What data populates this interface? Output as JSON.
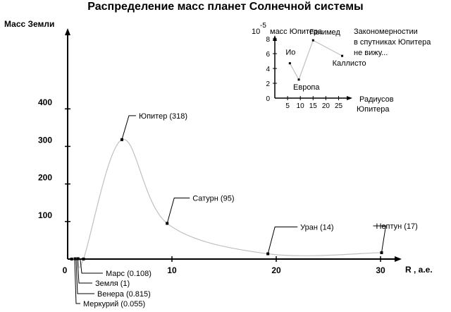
{
  "chart_data": [
    {
      "type": "line",
      "title": "Распределение масс планет Солнечной системы",
      "ylabel": "Масс Земли",
      "xlabel": "R , а.е.",
      "x_ticks": [
        "0",
        "10",
        "20",
        "30"
      ],
      "y_ticks": [
        "100",
        "200",
        "300",
        "400"
      ],
      "xlim": [
        0,
        35
      ],
      "ylim": [
        0,
        620
      ],
      "grid": false,
      "series": [
        {
          "x": [
            0.39,
            0.72,
            1.0,
            1.52,
            5.2,
            9.54,
            19.2,
            30.1
          ],
          "y": [
            0.055,
            0.815,
            1,
            0.108,
            318,
            95,
            14,
            17
          ]
        }
      ],
      "annotations": [
        {
          "label": "Меркурий (0.055)",
          "x": 0.39,
          "y": 0.055
        },
        {
          "label": "Венера (0.815)",
          "x": 0.72,
          "y": 0.815
        },
        {
          "label": "Земля (1)",
          "x": 1.0,
          "y": 1
        },
        {
          "label": "Марс (0.108)",
          "x": 1.52,
          "y": 0.108
        },
        {
          "label": "Юпитер (318)",
          "x": 5.2,
          "y": 318
        },
        {
          "label": "Сатурн (95)",
          "x": 9.54,
          "y": 95
        },
        {
          "label": "Уран (14)",
          "x": 19.2,
          "y": 14
        },
        {
          "label": "Нептун (17)",
          "x": 30.1,
          "y": 17
        }
      ]
    },
    {
      "type": "line",
      "ylabel_prefix": "10",
      "ylabel_exp": "-5",
      "ylabel": "масс Юпитера",
      "xlabel_line1": "Радиусов",
      "xlabel_line2": "Юпитера",
      "x_ticks": [
        "5",
        "10",
        "15",
        "20",
        "25"
      ],
      "y_ticks": [
        "0",
        "2",
        "4",
        "6",
        "8"
      ],
      "xlim": [
        0,
        29
      ],
      "ylim": [
        0,
        10
      ],
      "series": [
        {
          "x": [
            5.9,
            9.4,
            15.0,
            26.4
          ],
          "y": [
            4.7,
            2.5,
            7.8,
            5.7
          ]
        }
      ],
      "annotations": [
        {
          "label": "Ио",
          "x": 5.9,
          "y": 4.7
        },
        {
          "label": "Европа",
          "x": 9.4,
          "y": 2.5
        },
        {
          "label": "Ганимед",
          "x": 15.0,
          "y": 7.8
        },
        {
          "label": "Каллисто",
          "x": 26.4,
          "y": 5.7
        }
      ]
    }
  ],
  "note": {
    "lines": [
      "Закономерностии",
      "в спутниках Юпитера",
      "не вижу..."
    ]
  },
  "colors": {
    "curve": "#c0c0c0",
    "axis": "#000000"
  }
}
